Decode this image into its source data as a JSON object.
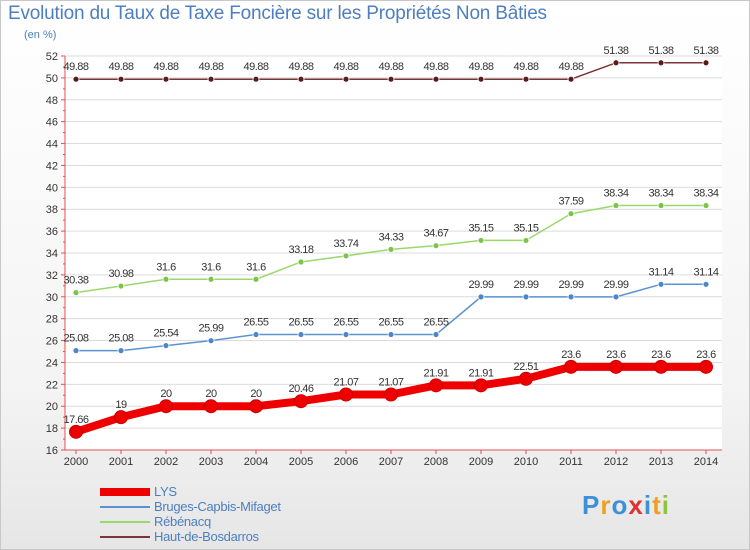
{
  "title": "Evolution du Taux de Taxe Foncière sur les Propriétés Non Bâties",
  "unit_label": "(en %)",
  "logo": {
    "letters": [
      "P",
      "r",
      "o",
      "x",
      "i",
      "t",
      "i"
    ],
    "colors": [
      "#3d8fd6",
      "#f0a020",
      "#3d8fd6",
      "#e03030",
      "#3d8fd6",
      "#f0a020",
      "#8cc63f"
    ]
  },
  "chart_data": {
    "type": "line",
    "x": [
      "2000",
      "2001",
      "2002",
      "2003",
      "2004",
      "2005",
      "2006",
      "2007",
      "2008",
      "2009",
      "2010",
      "2011",
      "2012",
      "2013",
      "2014"
    ],
    "ylim": [
      16,
      52
    ],
    "y_ticks": [
      "16",
      "18",
      "20",
      "22",
      "24",
      "26",
      "28",
      "30",
      "32",
      "34",
      "36",
      "38",
      "40",
      "42",
      "44",
      "46",
      "48",
      "50",
      "52"
    ],
    "grid": "horizontal",
    "legend_position": "bottom-left",
    "series": [
      {
        "name": "Haut-de-Bosdarros",
        "color": "#7a3636",
        "marker": "#5a1a1a",
        "width": 1.5,
        "values": [
          49.88,
          49.88,
          49.88,
          49.88,
          49.88,
          49.88,
          49.88,
          49.88,
          49.88,
          49.88,
          49.88,
          49.88,
          51.38,
          51.38,
          51.38
        ],
        "labels": [
          "49.88",
          "49.88",
          "49.88",
          "49.88",
          "49.88",
          "49.88",
          "49.88",
          "49.88",
          "49.88",
          "49.88",
          "49.88",
          "49.88",
          "51.38",
          "51.38",
          "51.38"
        ]
      },
      {
        "name": "Rébénacq",
        "color": "#9ad86a",
        "marker": "#7cc34a",
        "width": 1.5,
        "values": [
          30.38,
          30.98,
          31.6,
          31.6,
          31.6,
          33.18,
          33.74,
          34.33,
          34.67,
          35.15,
          35.15,
          37.59,
          38.34,
          38.34,
          38.34
        ],
        "labels": [
          "30.38",
          "30.98",
          "31.6",
          "31.6",
          "31.6",
          "33.18",
          "33.74",
          "34.33",
          "34.67",
          "35.15",
          "35.15",
          "37.59",
          "38.34",
          "38.34",
          "38.34"
        ]
      },
      {
        "name": "Bruges-Capbis-Mifaget",
        "color": "#5b93cf",
        "marker": "#4a86c8",
        "width": 1.5,
        "values": [
          25.08,
          25.08,
          25.54,
          25.99,
          26.55,
          26.55,
          26.55,
          26.55,
          26.55,
          29.99,
          29.99,
          29.99,
          29.99,
          31.14,
          31.14
        ],
        "labels": [
          "25.08",
          "25.08",
          "25.54",
          "25.99",
          "26.55",
          "26.55",
          "26.55",
          "26.55",
          "26.55",
          "29.99",
          "29.99",
          "29.99",
          "29.99",
          "31.14",
          "31.14"
        ]
      },
      {
        "name": "LYS",
        "color": "#ee0000",
        "marker": "#ee0000",
        "width": 8,
        "values": [
          17.66,
          19,
          20,
          20,
          20,
          20.46,
          21.07,
          21.07,
          21.91,
          21.91,
          22.51,
          23.6,
          23.6,
          23.6,
          23.6
        ],
        "labels": [
          "17.66",
          "19",
          "20",
          "20",
          "20",
          "20.46",
          "21.07",
          "21.07",
          "21.91",
          "21.91",
          "22.51",
          "23.6",
          "23.6",
          "23.6",
          "23.6"
        ]
      }
    ],
    "legend": [
      "LYS",
      "Bruges-Capbis-Mifaget",
      "Rébénacq",
      "Haut-de-Bosdarros"
    ]
  }
}
